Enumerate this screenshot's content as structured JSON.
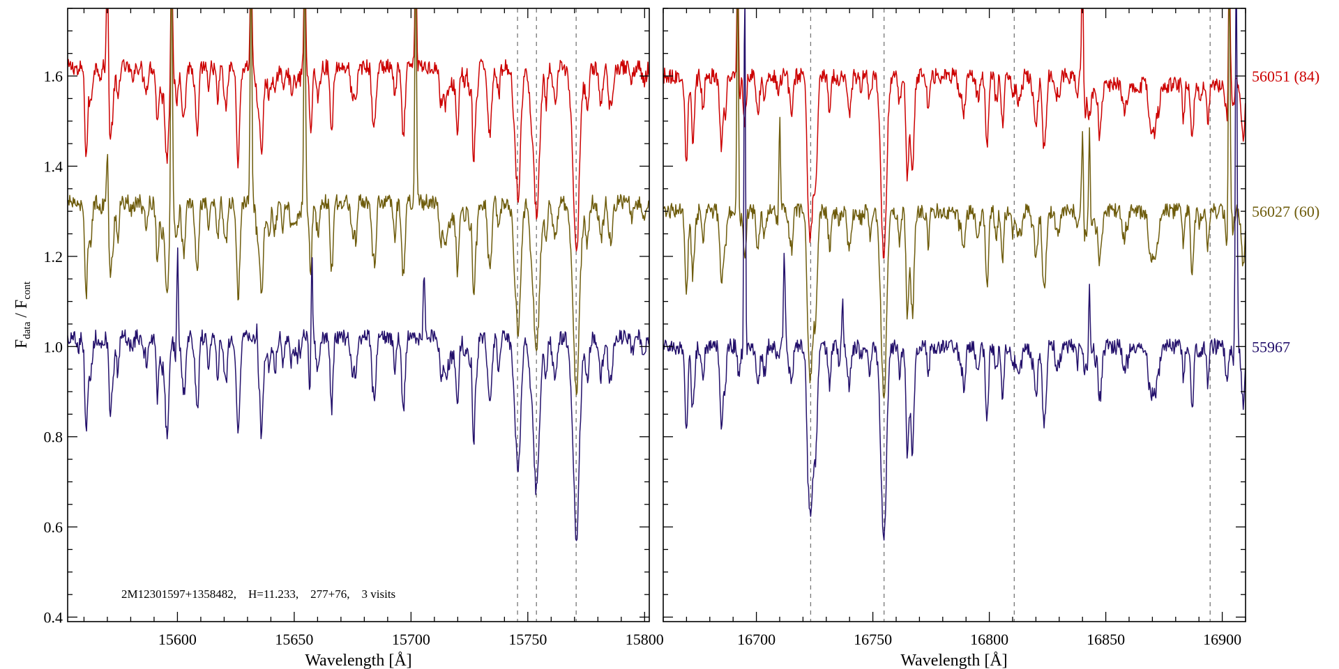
{
  "chart_data": {
    "type": "line",
    "ylabel": {
      "main": "F",
      "sub1": "data",
      "mid": " / F",
      "sub2": "cont"
    },
    "xlabel": "Wavelength [Å]",
    "ylim": [
      0.39,
      1.75
    ],
    "yticks": [
      0.4,
      0.6,
      0.8,
      1.0,
      1.2,
      1.4,
      1.6
    ],
    "ytick_labels": [
      "0.4",
      "0.6",
      "0.8",
      "1.0",
      "1.2",
      "1.4",
      "1.6"
    ],
    "annotation": "2M12301597+1358482,    H=11.233,    277+76,    3 visits",
    "series": [
      {
        "name": "56051 (84)",
        "offset": 0.6,
        "color": "#cc0000",
        "line_scale": 0.95,
        "emission": [
          [
            15570,
            1.9
          ],
          [
            15597.5,
            1.9
          ],
          [
            15631.5,
            1.9
          ],
          [
            15654.5,
            1.9
          ],
          [
            15702,
            1.9
          ],
          [
            16692,
            1.9
          ],
          [
            16840,
            1.9
          ],
          [
            16903,
            1.9
          ]
        ]
      },
      {
        "name": "56027 (60)",
        "offset": 0.3,
        "color": "#6e5c0c",
        "line_scale": 0.97,
        "emission": [
          [
            15570,
            1.44
          ],
          [
            15597.5,
            1.9
          ],
          [
            15631.5,
            1.9
          ],
          [
            15654.5,
            1.9
          ],
          [
            15702,
            1.9
          ],
          [
            16692,
            1.9
          ],
          [
            16710,
            1.53
          ],
          [
            16840,
            1.48
          ],
          [
            16843,
            1.55
          ],
          [
            16903,
            1.9
          ]
        ]
      },
      {
        "name": "55967",
        "offset": 0.0,
        "color": "#23106b",
        "line_scale": 1.0,
        "emission": [
          [
            15600,
            1.28
          ],
          [
            15634,
            1.12
          ],
          [
            15657.5,
            1.3
          ],
          [
            15705.6,
            1.16
          ],
          [
            16695,
            1.9
          ],
          [
            16712,
            1.2
          ],
          [
            16737,
            1.1
          ],
          [
            16843,
            1.21
          ],
          [
            16906,
            1.9
          ]
        ]
      }
    ],
    "panels": [
      {
        "xlim": [
          15553,
          15802
        ],
        "xticks": [
          15600,
          15650,
          15700,
          15750,
          15800
        ],
        "xtick_labels": [
          "15600",
          "15650",
          "15700",
          "15750",
          "15800"
        ],
        "dashed_lines": [
          15745.6,
          15753.7,
          15770.7
        ],
        "continuum": 1.02,
        "absorption_lines": [
          [
            15561,
            0.15,
            0.6
          ],
          [
            15595.6,
            0.19,
            0.8
          ],
          [
            15608.6,
            0.15,
            0.6
          ],
          [
            15626,
            0.22,
            0.7
          ],
          [
            15636,
            0.21,
            0.7
          ],
          [
            15657,
            0.15,
            0.6
          ],
          [
            15666,
            0.16,
            0.6
          ],
          [
            15684.5,
            0.13,
            0.6
          ],
          [
            15696.7,
            0.17,
            0.7
          ],
          [
            15720,
            0.09,
            0.6
          ],
          [
            15727,
            0.16,
            0.6
          ],
          [
            15745.6,
            0.26,
            1.3
          ],
          [
            15753.7,
            0.34,
            1.3
          ],
          [
            15770.7,
            0.37,
            1.5
          ]
        ]
      },
      {
        "xlim": [
          16660,
          16910
        ],
        "xticks": [
          16700,
          16750,
          16800,
          16850,
          16900
        ],
        "xtick_labels": [
          "16700",
          "16750",
          "16800",
          "16850",
          "16900"
        ],
        "dashed_lines": [
          16723.3,
          16754.8,
          16810.7,
          16894.8
        ],
        "continuum": 1.0,
        "absorption_lines": [
          [
            16670,
            0.12,
            0.6
          ],
          [
            16685,
            0.17,
            0.7
          ],
          [
            16695,
            0.11,
            0.6
          ],
          [
            16723.3,
            0.33,
            1.1
          ],
          [
            16725.5,
            0.2,
            0.8
          ],
          [
            16754.6,
            0.39,
            1.2
          ],
          [
            16767,
            0.23,
            0.7
          ],
          [
            16803,
            0.06,
            0.6
          ],
          [
            16824,
            0.12,
            0.6
          ],
          [
            16871,
            0.1,
            0.6
          ]
        ]
      }
    ]
  }
}
